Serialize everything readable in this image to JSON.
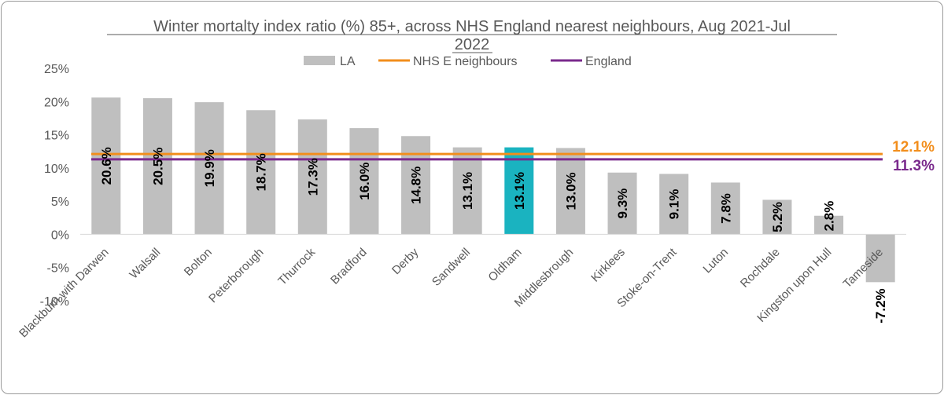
{
  "chart_data": {
    "type": "bar",
    "title_lines": [
      "Winter mortalty index ratio (%) 85+, across NHS England nearest neighbours, Aug 2021-Jul",
      "2022"
    ],
    "categories": [
      "Blackburn with Darwen",
      "Walsall",
      "Bolton",
      "Peterborough",
      "Thurrock",
      "Bradford",
      "Derby",
      "Sandwell",
      "Oldham",
      "Middlesbrough",
      "Kirklees",
      "Stoke-on-Trent",
      "Luton",
      "Rochdale",
      "Kingston upon Hull",
      "Tameside"
    ],
    "series": [
      {
        "name": "LA",
        "values": [
          20.6,
          20.5,
          19.9,
          18.7,
          17.3,
          16.0,
          14.8,
          13.1,
          13.1,
          13.0,
          9.3,
          9.1,
          7.8,
          5.2,
          2.8,
          -7.2
        ],
        "labels": [
          "20.6%",
          "20.5%",
          "19.9%",
          "18.7%",
          "17.3%",
          "16.0%",
          "14.8%",
          "13.1%",
          "13.1%",
          "13.0%",
          "9.3%",
          "9.1%",
          "7.8%",
          "5.2%",
          "2.8%",
          "-7.2%"
        ],
        "color": "#bfbfbf",
        "highlight_category": "Oldham",
        "highlight_color": "#1ab3c0"
      }
    ],
    "reference_lines": [
      {
        "name": "NHS E neighbours",
        "value": 12.1,
        "label": "12.1%",
        "color": "#f28e1c"
      },
      {
        "name": "England",
        "value": 11.3,
        "label": "11.3%",
        "color": "#7a2a8c"
      }
    ],
    "ylim": [
      -10,
      25
    ],
    "yticks": [
      -10,
      -5,
      0,
      5,
      10,
      15,
      20,
      25
    ],
    "ytick_labels": [
      "-10%",
      "-5%",
      "0%",
      "5%",
      "10%",
      "15%",
      "20%",
      "25%"
    ],
    "legend_position": "top",
    "grid": false
  }
}
